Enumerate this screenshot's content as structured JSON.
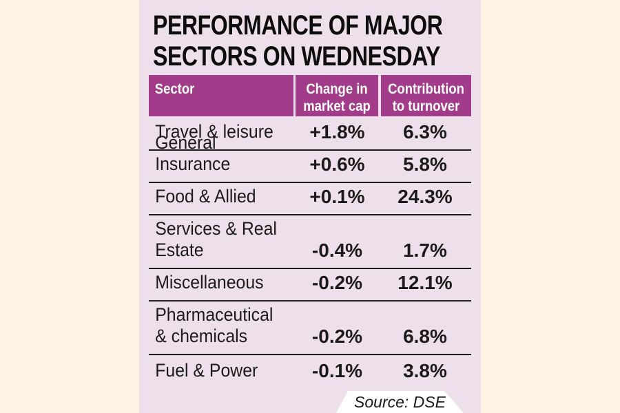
{
  "panel": {
    "title_line1": "PERFORMANCE OF MAJOR",
    "title_line2": "SECTORS ON WEDNESDAY",
    "source": "Source: DSE"
  },
  "table": {
    "headers": [
      "Sector",
      "Change in market cap",
      "Contribution to turnover"
    ],
    "rows": [
      {
        "sector": "Travel & leisure",
        "change": "+1.8%",
        "contribution": "6.3%"
      },
      {
        "sector": "General Insurance",
        "change": "+0.6%",
        "contribution": "5.8%"
      },
      {
        "sector": "Food & Allied",
        "change": "+0.1%",
        "contribution": "24.3%"
      },
      {
        "sector": "Services & Real\nEstate",
        "change": "-0.4%",
        "contribution": "1.7%"
      },
      {
        "sector": "Miscellaneous",
        "change": "-0.2%",
        "contribution": "12.1%"
      },
      {
        "sector": "Pharmaceutical\n& chemicals",
        "change": "-0.2%",
        "contribution": "6.8%"
      },
      {
        "sector": "Fuel & Power",
        "change": "-0.1%",
        "contribution": "3.8%"
      }
    ]
  },
  "colors": {
    "page_background": "#fdf3e4",
    "panel_background": "#eee0ea",
    "header_background": "#a23b8a",
    "header_text": "#ffffff",
    "body_text": "#1b1b1b",
    "rule": "#1b1b1b",
    "source_background": "#ffffff"
  },
  "chart_data": {
    "type": "table",
    "title": "PERFORMANCE OF MAJOR SECTORS ON WEDNESDAY",
    "columns": [
      "Sector",
      "Change in market cap",
      "Contribution to turnover"
    ],
    "rows": [
      {
        "sector": "Travel & leisure",
        "change_in_market_cap_pct": 1.8,
        "contribution_to_turnover_pct": 6.3
      },
      {
        "sector": "General Insurance",
        "change_in_market_cap_pct": 0.6,
        "contribution_to_turnover_pct": 5.8
      },
      {
        "sector": "Food & Allied",
        "change_in_market_cap_pct": 0.1,
        "contribution_to_turnover_pct": 24.3
      },
      {
        "sector": "Services & Real Estate",
        "change_in_market_cap_pct": -0.4,
        "contribution_to_turnover_pct": 1.7
      },
      {
        "sector": "Miscellaneous",
        "change_in_market_cap_pct": -0.2,
        "contribution_to_turnover_pct": 12.1
      },
      {
        "sector": "Pharmaceutical & chemicals",
        "change_in_market_cap_pct": -0.2,
        "contribution_to_turnover_pct": 6.8
      },
      {
        "sector": "Fuel & Power",
        "change_in_market_cap_pct": -0.1,
        "contribution_to_turnover_pct": 3.8
      }
    ],
    "source": "DSE"
  }
}
